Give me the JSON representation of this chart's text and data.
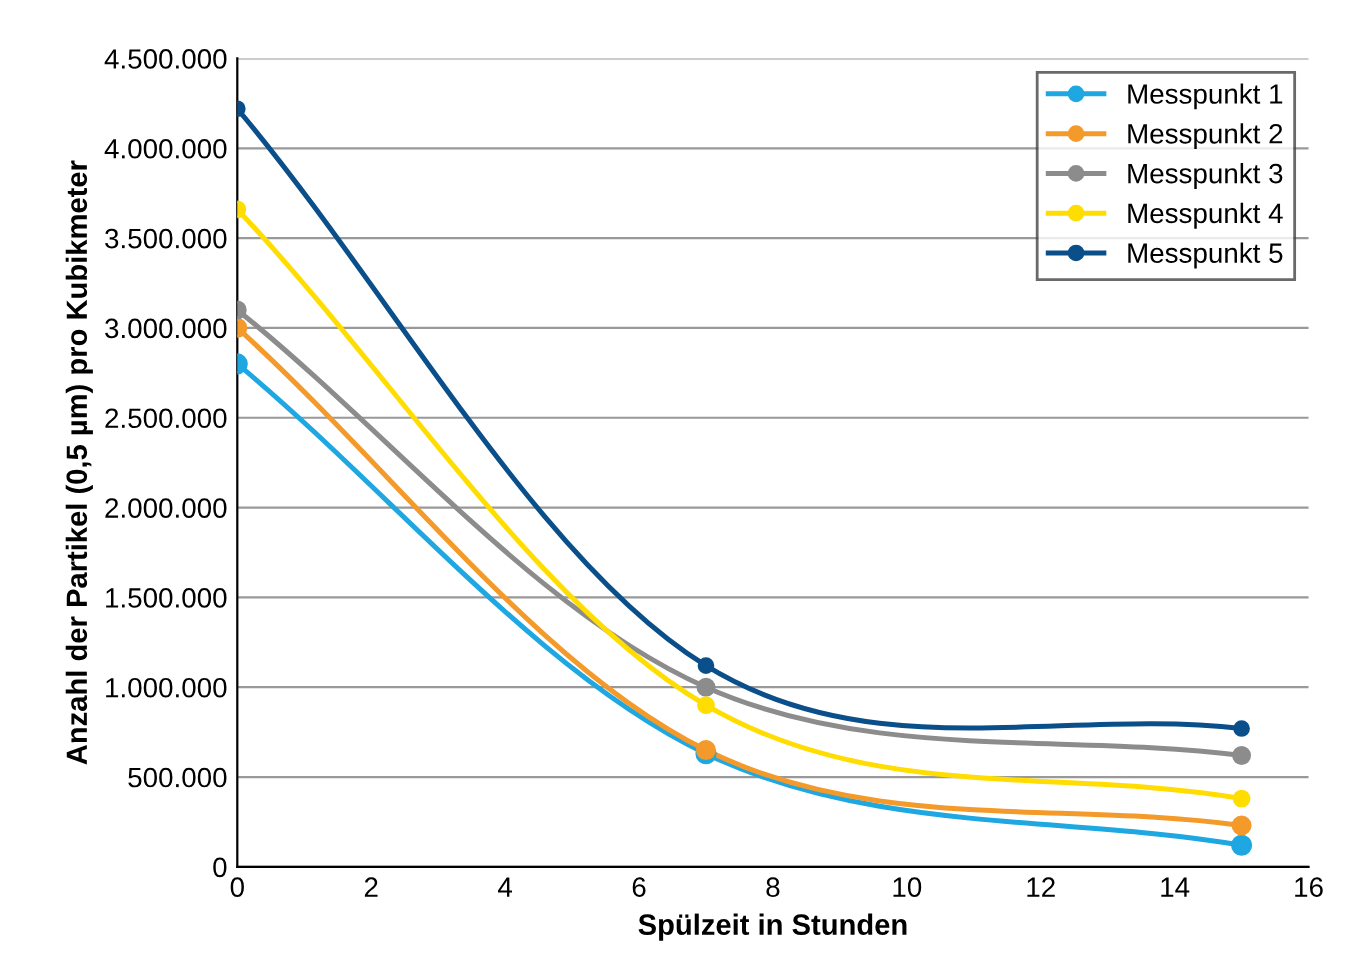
{
  "chart_data": {
    "type": "line",
    "xlabel": "Spülzeit in Stunden",
    "ylabel": "Anzahl der Partikel (0,5 µm) pro Kubikmeter",
    "x": [
      0,
      7,
      15
    ],
    "series": [
      {
        "name": "Messpunkt 1",
        "color": "#1ea7e1",
        "values": [
          2800000,
          630000,
          120000
        ]
      },
      {
        "name": "Messpunkt 2",
        "color": "#f39a2b",
        "values": [
          3000000,
          650000,
          230000
        ]
      },
      {
        "name": "Messpunkt 3",
        "color": "#8c8c8c",
        "values": [
          3100000,
          1000000,
          620000
        ]
      },
      {
        "name": "Messpunkt 4",
        "color": "#ffdd00",
        "values": [
          3660000,
          900000,
          380000
        ]
      },
      {
        "name": "Messpunkt 5",
        "color": "#0a4f8a",
        "values": [
          4220000,
          1120000,
          770000
        ]
      }
    ],
    "xlim": [
      0,
      16
    ],
    "xticks": [
      0,
      2,
      4,
      6,
      8,
      10,
      12,
      14,
      16
    ],
    "ylim": [
      0,
      4500000
    ],
    "yticks": [
      {
        "value": 0,
        "label": "0"
      },
      {
        "value": 500000,
        "label": "500.000"
      },
      {
        "value": 1000000,
        "label": "1.000.000"
      },
      {
        "value": 1500000,
        "label": "1.500.000"
      },
      {
        "value": 2000000,
        "label": "2.000.000"
      },
      {
        "value": 2500000,
        "label": "2.500.000"
      },
      {
        "value": 3000000,
        "label": "3.000.000"
      },
      {
        "value": 3500000,
        "label": "3.500.000"
      },
      {
        "value": 4000000,
        "label": "4.000.000"
      },
      {
        "value": 4500000,
        "label": "4.500.000"
      }
    ],
    "grid": "y",
    "legend": "top right",
    "marker": "circle",
    "line_style": "solid"
  }
}
